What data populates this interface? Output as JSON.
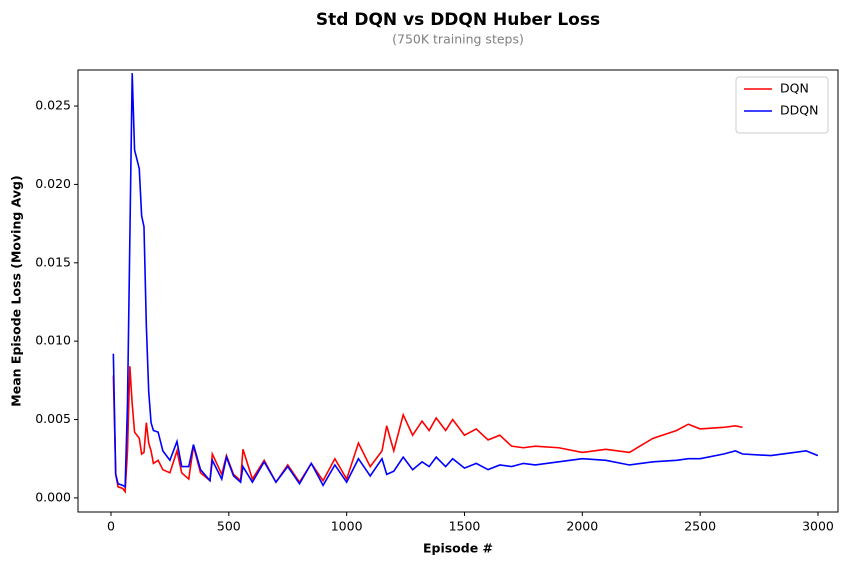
{
  "chart_data": {
    "type": "line",
    "title": "Std DQN vs DDQN Huber Loss",
    "subtitle": "(750K training steps)",
    "x_label": "Episode #",
    "y_label": "Mean Episode Loss (Moving Avg)",
    "x": [
      10,
      20,
      30,
      50,
      60,
      70,
      80,
      90,
      100,
      120,
      130,
      140,
      150,
      160,
      170,
      180,
      200,
      220,
      250,
      280,
      300,
      330,
      350,
      380,
      420,
      430,
      470,
      490,
      520,
      550,
      560,
      600,
      650,
      700,
      750,
      800,
      850,
      900,
      950,
      1000,
      1050,
      1100,
      1150,
      1170,
      1200,
      1240,
      1280,
      1320,
      1350,
      1380,
      1420,
      1450,
      1500,
      1550,
      1600,
      1650,
      1700,
      1750,
      1800,
      1900,
      2000,
      2100,
      2200,
      2300,
      2400,
      2450,
      2500,
      2600,
      2650,
      2680,
      2800,
      2900,
      2950,
      3000
    ],
    "series": [
      {
        "name": "DQN",
        "color": "#ff0000",
        "values": [
          0.0078,
          0.0015,
          0.0007,
          0.0006,
          0.0004,
          0.003,
          0.0084,
          0.006,
          0.0042,
          0.0038,
          0.0028,
          0.0029,
          0.0048,
          0.0035,
          0.003,
          0.0022,
          0.0024,
          0.0018,
          0.0016,
          0.003,
          0.0016,
          0.0012,
          0.0033,
          0.0016,
          0.0011,
          0.0028,
          0.0015,
          0.0027,
          0.0015,
          0.0011,
          0.0031,
          0.0012,
          0.0024,
          0.001,
          0.0021,
          0.001,
          0.0022,
          0.0011,
          0.0025,
          0.0012,
          0.0035,
          0.002,
          0.003,
          0.0046,
          0.003,
          0.0053,
          0.004,
          0.0049,
          0.0043,
          0.0051,
          0.0043,
          0.005,
          0.004,
          0.0044,
          0.0037,
          0.004,
          0.0033,
          0.0032,
          0.0033,
          0.0032,
          0.0029,
          0.0031,
          0.0029,
          0.0038,
          0.0043,
          0.0047,
          0.0044,
          0.0045,
          0.0046,
          0.0045,
          null,
          null,
          null,
          null
        ]
      },
      {
        "name": "DDQN",
        "color": "#0000ff",
        "values": [
          0.0092,
          0.0015,
          0.0009,
          0.0008,
          0.0007,
          0.006,
          0.0165,
          0.0271,
          0.0222,
          0.021,
          0.018,
          0.0173,
          0.011,
          0.0068,
          0.0048,
          0.0043,
          0.0042,
          0.003,
          0.0024,
          0.0036,
          0.002,
          0.002,
          0.0034,
          0.0018,
          0.0011,
          0.0024,
          0.0012,
          0.0026,
          0.0014,
          0.001,
          0.002,
          0.001,
          0.0023,
          0.001,
          0.002,
          0.0009,
          0.0022,
          0.0008,
          0.0021,
          0.001,
          0.0025,
          0.0014,
          0.0025,
          0.0015,
          0.0017,
          0.0026,
          0.0018,
          0.0023,
          0.002,
          0.0026,
          0.002,
          0.0025,
          0.0019,
          0.0022,
          0.0018,
          0.0021,
          0.002,
          0.0022,
          0.0021,
          0.0023,
          0.0025,
          0.0024,
          0.0021,
          0.0023,
          0.0024,
          0.0025,
          0.0025,
          0.0028,
          0.003,
          0.0028,
          0.0027,
          0.0029,
          0.003,
          0.0027
        ]
      }
    ],
    "xlim": [
      -140,
      3085
    ],
    "ylim": [
      -0.0009,
      0.0273
    ],
    "xticks": [
      0,
      500,
      1000,
      1500,
      2000,
      2500,
      3000
    ],
    "yticks": [
      {
        "value": 0,
        "label": "0.000"
      },
      {
        "value": 0.005,
        "label": "0.005"
      },
      {
        "value": 0.01,
        "label": "0.010"
      },
      {
        "value": 0.015,
        "label": "0.015"
      },
      {
        "value": 0.02,
        "label": "0.020"
      },
      {
        "value": 0.025,
        "label": "0.025"
      }
    ],
    "legend": "upper right",
    "grid": false
  }
}
